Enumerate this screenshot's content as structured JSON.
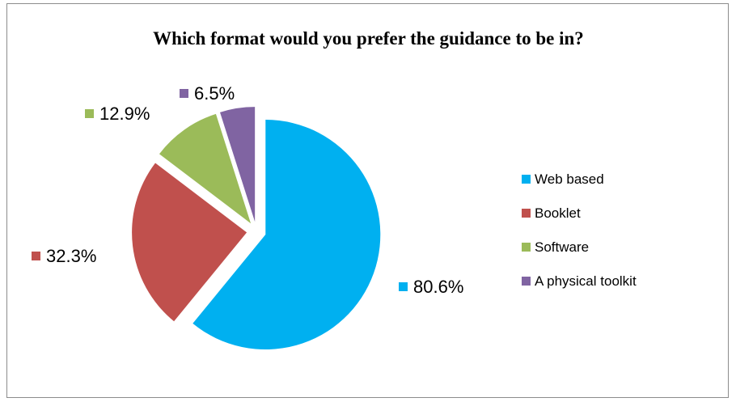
{
  "chart_data": {
    "type": "pie",
    "title": "Which format would you prefer the guidance to be in?",
    "categories": [
      "Web based",
      "Booklet",
      "Software",
      "A physical toolkit"
    ],
    "values": [
      80.6,
      32.3,
      12.9,
      6.5
    ],
    "data_labels": [
      "80.6%",
      "32.3%",
      "12.9%",
      "6.5%"
    ],
    "colors": [
      "#00b0f0",
      "#c0504d",
      "#9bbb59",
      "#8064a2"
    ],
    "exploded": true,
    "legend_position": "right"
  }
}
